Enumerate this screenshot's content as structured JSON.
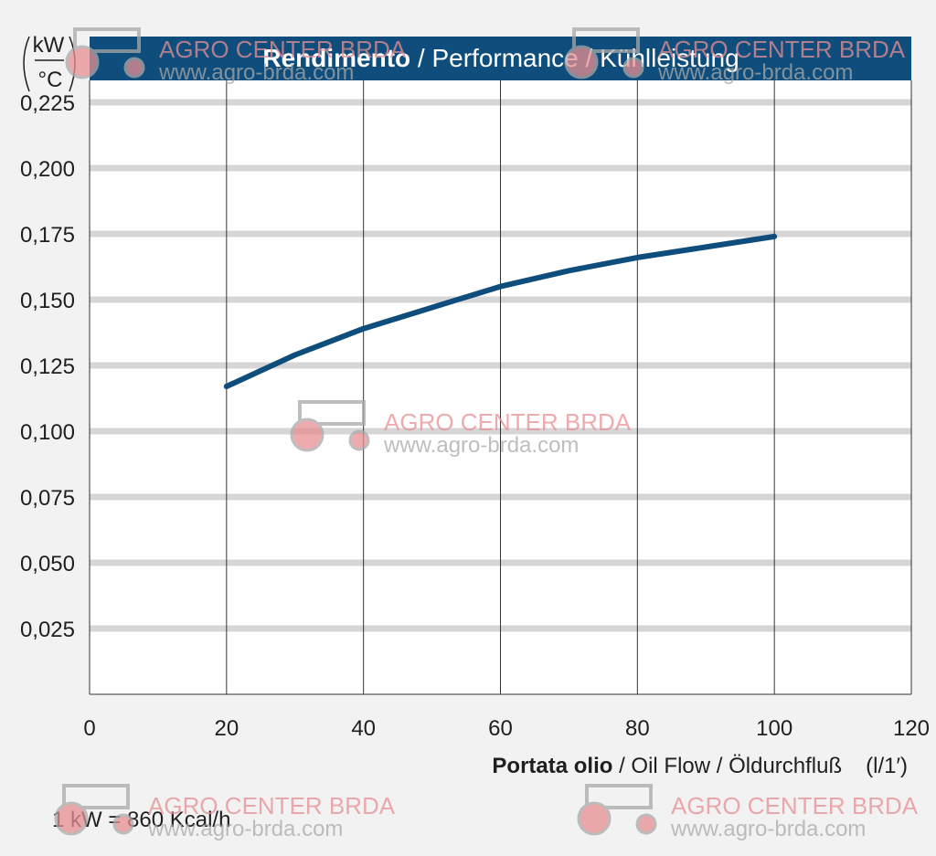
{
  "chart_data": {
    "type": "line",
    "title_bold": "Rendimento",
    "title_rest": " / Performance / Kühlleistung",
    "y_unit_top": "kW",
    "y_unit_bottom": "°C",
    "xlabel_bold": "Portata olio",
    "xlabel_rest": " / Oil Flow / Öldurchfluß",
    "xlabel_unit": "(l/1′)",
    "footnote": "1 kW = 860 Kcal/h",
    "xlim": [
      0,
      120
    ],
    "ylim": [
      0,
      0.25
    ],
    "x_ticks": [
      "0",
      "20",
      "40",
      "60",
      "80",
      "100",
      "120"
    ],
    "y_ticks": [
      "0,025",
      "0,050",
      "0,075",
      "0,100",
      "0,125",
      "0,150",
      "0,175",
      "0,200",
      "0,225"
    ],
    "grid": "vertical and horizontal",
    "series": [
      {
        "x": [
          20,
          30,
          40,
          50,
          60,
          70,
          80,
          90,
          100
        ],
        "y": [
          0.117,
          0.129,
          0.139,
          0.147,
          0.155,
          0.161,
          0.166,
          0.17,
          0.174
        ],
        "color": "#0e4d7c"
      }
    ]
  },
  "watermark": {
    "name": "AGRO CENTER BRDA",
    "url": "www.agro-brda.com"
  },
  "colors": {
    "header": "#0e4d7c",
    "grid": "#d6d6d6",
    "background": "#f2f2f2",
    "plot_bg": "#ffffff",
    "watermark": "#e88f93"
  }
}
